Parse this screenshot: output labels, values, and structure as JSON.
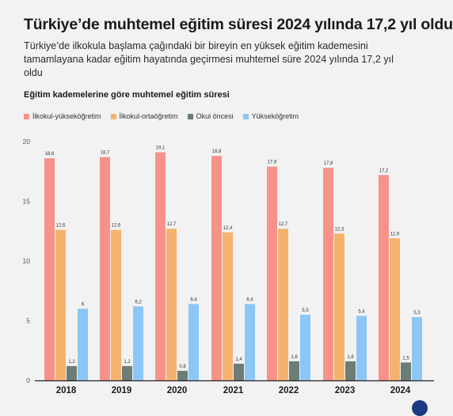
{
  "headline": "Türkiye’de muhtemel eğitim süresi 2024 yılında 17,2 yıl oldu",
  "subtitle": "Türkiye’de ilkokula başlama çağındaki bir bireyin en yüksek eğitim kademesini tamamlayana kadar eğitim hayatında geçirmesi muhtemel süre 2024 yılında 17,2 yıl oldu",
  "colors": {
    "ilkokul_yuksekogretim": "#f7928a",
    "ilkokul_ortaogretim": "#f4b26e",
    "okul_oncesi": "#6b7d76",
    "yuksekogretim": "#8cc6f5"
  },
  "chart_data": {
    "type": "bar",
    "title": "Eğitim kademelerine göre muhtemel eğitim süresi",
    "categories": [
      "2018",
      "2019",
      "2020",
      "2021",
      "2022",
      "2023",
      "2024"
    ],
    "series": [
      {
        "name": "İlkokul-yükseköğretim",
        "values": [
          18.6,
          18.7,
          19.1,
          18.8,
          17.9,
          17.8,
          17.2
        ],
        "labels": [
          "18,6",
          "18,7",
          "19,1",
          "18,8",
          "17,9",
          "17,8",
          "17,2"
        ]
      },
      {
        "name": "İlkokul-ortaöğretim",
        "values": [
          12.6,
          12.6,
          12.7,
          12.4,
          12.7,
          12.3,
          11.9
        ],
        "labels": [
          "12,6",
          "12,6",
          "12,7",
          "12,4",
          "12,7",
          "12,3",
          "11,9"
        ]
      },
      {
        "name": "Okul öncesi",
        "values": [
          1.2,
          1.2,
          0.8,
          1.4,
          1.6,
          1.6,
          1.5
        ],
        "labels": [
          "1,2",
          "1,2",
          "0,8",
          "1,4",
          "1,6",
          "1,6",
          "1,5"
        ]
      },
      {
        "name": "Yükseköğretim",
        "values": [
          6,
          6.2,
          6.4,
          6.4,
          5.5,
          5.4,
          5.3
        ],
        "labels": [
          "6",
          "6,2",
          "6,4",
          "6,4",
          "5,5",
          "5,4",
          "5,3"
        ]
      }
    ],
    "y_ticks": [
      "0",
      "5",
      "10",
      "15",
      "20"
    ],
    "ylim": [
      0,
      20
    ],
    "legend": "top-left",
    "grid": false
  }
}
